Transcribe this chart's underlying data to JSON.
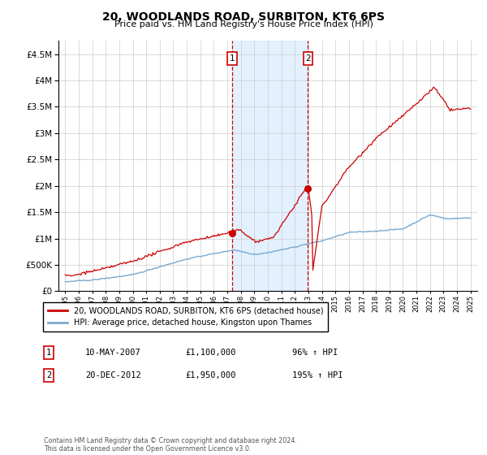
{
  "title": "20, WOODLANDS ROAD, SURBITON, KT6 6PS",
  "subtitle": "Price paid vs. HM Land Registry's House Price Index (HPI)",
  "legend_line1": "20, WOODLANDS ROAD, SURBITON, KT6 6PS (detached house)",
  "legend_line2": "HPI: Average price, detached house, Kingston upon Thames",
  "footer": "Contains HM Land Registry data © Crown copyright and database right 2024.\nThis data is licensed under the Open Government Licence v3.0.",
  "marker1_date": "10-MAY-2007",
  "marker1_price": "£1,100,000",
  "marker1_hpi": "96% ↑ HPI",
  "marker1_year": 2007.36,
  "marker1_value": 1100000,
  "marker2_date": "20-DEC-2012",
  "marker2_price": "£1,950,000",
  "marker2_hpi": "195% ↑ HPI",
  "marker2_year": 2012.97,
  "marker2_value": 1950000,
  "ylim": [
    0,
    4750000
  ],
  "xlim": [
    1994.5,
    2025.5
  ],
  "yticks": [
    0,
    500000,
    1000000,
    1500000,
    2000000,
    2500000,
    3000000,
    3500000,
    4000000,
    4500000
  ],
  "red_line_color": "#cc0000",
  "blue_line_color": "#7aaacf",
  "background_color": "#ffffff",
  "grid_color": "#cccccc",
  "shade_color": "#ddeeff"
}
